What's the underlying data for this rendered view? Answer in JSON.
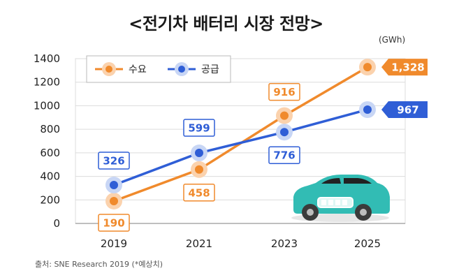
{
  "title": "<전기차 배터리 시장 전망>",
  "unit_label": "(GWh)",
  "source": "출처: SNE Research 2019 (*예상치)",
  "colors": {
    "demand": "#f08a2c",
    "supply": "#2f5ed6",
    "demand_marker_halo": "#fbd2ad",
    "supply_marker_halo": "#c8d6f5",
    "grid": "#dcdcdc",
    "car_body": "#32bcb4",
    "car_window": "#222222"
  },
  "icons": [
    "electric-car-icon"
  ],
  "chart_data": {
    "type": "line",
    "title": "<전기차 배터리 시장 전망>",
    "xlabel": "",
    "ylabel": "",
    "unit": "(GWh)",
    "categories": [
      "2019",
      "2021",
      "2023",
      "2025"
    ],
    "ylim": [
      0,
      1400
    ],
    "yticks": [
      0,
      200,
      400,
      600,
      800,
      1000,
      1200,
      1400
    ],
    "grid": true,
    "legend_position": "top-left",
    "series": [
      {
        "name": "수요",
        "values": [
          190,
          458,
          916,
          1328
        ],
        "labels": [
          "190",
          "458",
          "916",
          "1,328"
        ],
        "color": "#f08a2c"
      },
      {
        "name": "공급",
        "values": [
          326,
          599,
          776,
          967
        ],
        "labels": [
          "326",
          "599",
          "776",
          "967"
        ],
        "color": "#2f5ed6"
      }
    ]
  }
}
